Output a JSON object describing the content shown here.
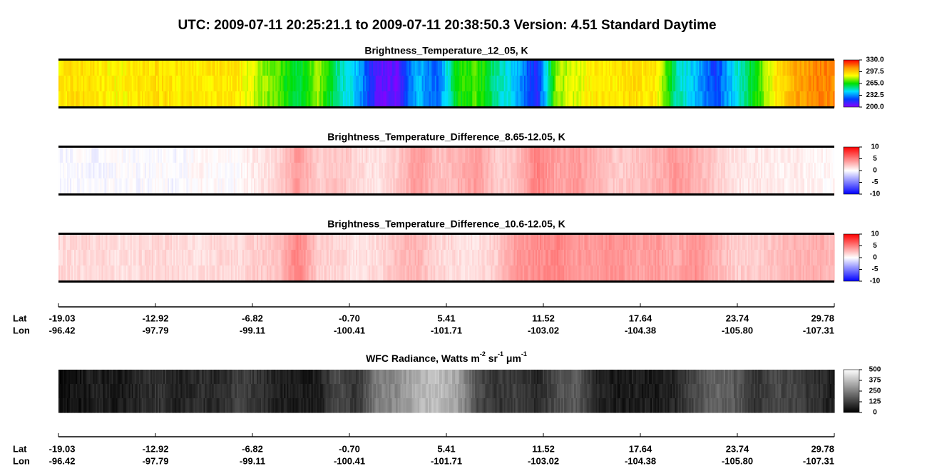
{
  "title": "UTC:  2009-07-11   20:25:21.1  to  2009-07-11   20:38:50.3    Version: 4.51  Standard Daytime",
  "chart_data": [
    {
      "type": "heatmap",
      "title": "Brightness_Temperature_12_05, K",
      "colormap": [
        "#8a00ff",
        "#0040ff",
        "#00e0ff",
        "#00e000",
        "#ffff00",
        "#ff9900",
        "#ff0000"
      ],
      "clim": [
        200,
        330
      ],
      "cticks": [
        {
          "value": 200,
          "label": "200.0"
        },
        {
          "value": 232.5,
          "label": "232.5"
        },
        {
          "value": 265,
          "label": "265.0"
        },
        {
          "value": 297.5,
          "label": "297.5"
        },
        {
          "value": 330,
          "label": "330.0"
        }
      ]
    },
    {
      "type": "heatmap",
      "title": "Brightness_Temperature_Difference_8.65-12.05, K",
      "colormap": [
        "#0000ff",
        "#ffffff",
        "#ff0000"
      ],
      "clim": [
        -10,
        10
      ],
      "cticks": [
        -10,
        -5,
        0,
        5,
        10
      ]
    },
    {
      "type": "heatmap",
      "title": "Brightness_Temperature_Difference_10.6-12.05, K",
      "colormap": [
        "#0000ff",
        "#ffffff",
        "#ff0000"
      ],
      "clim": [
        -10,
        10
      ],
      "cticks": [
        -10,
        -5,
        0,
        5,
        10
      ]
    },
    {
      "type": "heatmap",
      "title_parts": [
        "WFC Radiance, Watts m",
        "-2",
        " sr",
        "-1",
        " μm",
        "-1"
      ],
      "colormap": [
        "#000000",
        "#ffffff"
      ],
      "clim": [
        0,
        500
      ],
      "cticks": [
        0,
        125,
        250,
        375,
        500
      ]
    }
  ],
  "axes": [
    {
      "lat_label": "Lat",
      "lon_label": "Lon",
      "lat": [
        -19.03,
        -12.92,
        -6.82,
        {
          "value": -0.7,
          "label": "-0.70"
        },
        5.41,
        11.52,
        17.64,
        23.74,
        29.78
      ],
      "lon": [
        -96.42,
        -97.79,
        -99.11,
        -100.41,
        -101.71,
        -103.02,
        -104.38,
        {
          "value": -105.8,
          "label": "-105.80"
        },
        -107.31
      ]
    },
    {
      "lat_label": "Lat",
      "lon_label": "Lon",
      "lat": [
        -19.03,
        -12.92,
        -6.82,
        {
          "value": -0.7,
          "label": "-0.70"
        },
        5.41,
        11.52,
        17.64,
        23.74,
        29.78
      ],
      "lon": [
        -96.42,
        -97.79,
        -99.11,
        -100.41,
        -101.71,
        -103.02,
        -104.38,
        {
          "value": -105.8,
          "label": "-105.80"
        },
        -107.31
      ]
    }
  ]
}
